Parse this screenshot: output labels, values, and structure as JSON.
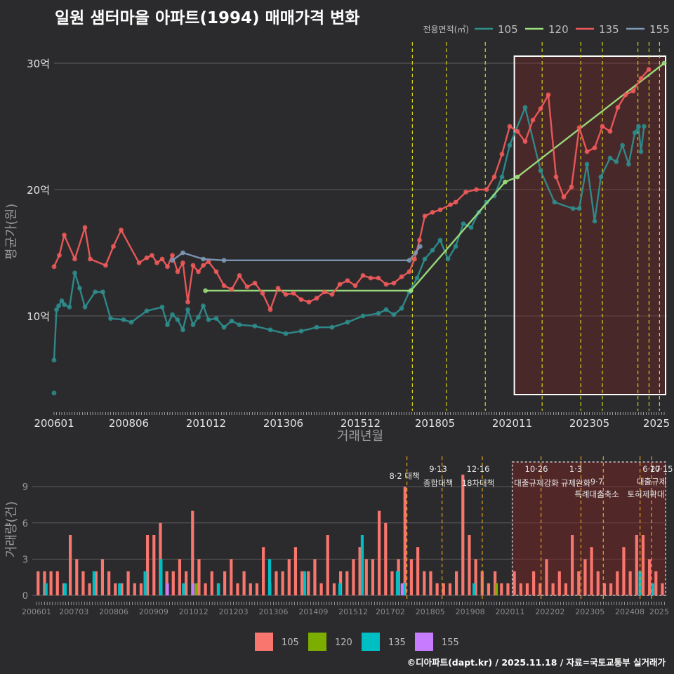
{
  "title": "일원 샘터마을 아파트(1994) 매매가격 변화",
  "credit": "©디아파트(dapt.kr) / 2025.11.18 / 자료=국토교통부 실거래가",
  "chart_data": [
    {
      "type": "line",
      "title": "일원 샘터마을 아파트(1994) 매매가격 변화",
      "xlabel": "거래년월",
      "ylabel": "평균가(원)",
      "legend_title": "전용면적(㎡)",
      "x_ticks": [
        "200601",
        "200806",
        "201012",
        "201306",
        "201512",
        "201805",
        "202011",
        "202305",
        "2025"
      ],
      "y_ticks": [
        {
          "v": 10,
          "label": "10억"
        },
        {
          "v": 20,
          "label": "20억"
        },
        {
          "v": 30,
          "label": "30억"
        }
      ],
      "ylim": [
        3,
        33
      ],
      "xlim": [
        2006.0,
        2025.75
      ],
      "highlight_window": [
        2020.9,
        2025.8
      ],
      "policy_lines": [
        2017.6,
        2018.7,
        2019.96,
        2021.8,
        2023.05,
        2023.75,
        2024.9,
        2025.26,
        2025.6
      ],
      "series": [
        {
          "name": "105",
          "color": "#2e8d8d",
          "x": [
            2006.0,
            2006.08,
            2006.15,
            2006.25,
            2006.33,
            2006.5,
            2006.67,
            2006.83,
            2007.0,
            2007.33,
            2007.58,
            2007.83,
            2008.25,
            2008.5,
            2009.0,
            2009.5,
            2009.67,
            2009.83,
            2010.0,
            2010.17,
            2010.33,
            2010.5,
            2010.67,
            2010.83,
            2011.0,
            2011.25,
            2011.5,
            2011.75,
            2012.0,
            2012.5,
            2013.0,
            2013.5,
            2014.0,
            2014.5,
            2015.0,
            2015.5,
            2016.0,
            2016.5,
            2016.75,
            2017.0,
            2017.25,
            2017.5,
            2017.75,
            2018.0,
            2018.25,
            2018.5,
            2018.75,
            2019.0,
            2019.25,
            2019.5,
            2019.75,
            2020.0,
            2020.25,
            2020.5,
            2020.75,
            2021.25,
            2021.75,
            2022.2,
            2022.8,
            2023.0,
            2023.25,
            2023.5,
            2023.7,
            2024.0,
            2024.2,
            2024.4,
            2024.6,
            2024.8,
            2024.92,
            2025.0,
            2025.1
          ],
          "y": [
            6.5,
            10.5,
            10.8,
            11.2,
            10.9,
            10.7,
            13.4,
            12.2,
            10.7,
            11.9,
            11.9,
            9.8,
            9.7,
            9.5,
            10.4,
            10.7,
            9.3,
            10.1,
            9.7,
            8.9,
            10.5,
            9.3,
            9.9,
            10.8,
            9.7,
            9.8,
            9.1,
            9.6,
            9.3,
            9.2,
            8.9,
            8.6,
            8.8,
            9.1,
            9.1,
            9.5,
            10.0,
            10.2,
            10.5,
            10.1,
            10.6,
            11.9,
            13.0,
            14.5,
            15.2,
            16.0,
            14.5,
            15.5,
            17.3,
            17.0,
            18.2,
            19.0,
            19.5,
            21.0,
            23.5,
            26.5,
            21.5,
            19.0,
            18.5,
            18.5,
            22.0,
            17.5,
            21.0,
            22.5,
            22.2,
            23.5,
            22.0,
            24.5,
            25.0,
            23.0,
            25.0
          ]
        },
        {
          "name": "120",
          "color": "#9ee07d",
          "x": [
            2010.9,
            2017.55,
            2020.6,
            2021.0,
            2025.75
          ],
          "y": [
            12.0,
            12.0,
            20.6,
            21.0,
            30.0
          ]
        },
        {
          "name": "135",
          "color": "#f05a5a",
          "x": [
            2006.0,
            2006.17,
            2006.33,
            2006.67,
            2007.0,
            2007.17,
            2007.67,
            2007.92,
            2008.17,
            2008.75,
            2009.0,
            2009.17,
            2009.33,
            2009.5,
            2009.67,
            2009.83,
            2010.0,
            2010.17,
            2010.33,
            2010.5,
            2010.67,
            2010.83,
            2011.0,
            2011.25,
            2011.5,
            2011.75,
            2012.0,
            2012.25,
            2012.5,
            2012.75,
            2013.0,
            2013.25,
            2013.5,
            2013.75,
            2014.0,
            2014.25,
            2014.5,
            2014.75,
            2015.0,
            2015.25,
            2015.5,
            2015.75,
            2016.0,
            2016.25,
            2016.5,
            2016.75,
            2017.0,
            2017.25,
            2017.5,
            2017.67,
            2017.83,
            2018.0,
            2018.25,
            2018.5,
            2018.83,
            2019.0,
            2019.33,
            2019.67,
            2020.0,
            2020.25,
            2020.5,
            2020.75,
            2021.0,
            2021.25,
            2021.5,
            2021.75,
            2022.0,
            2022.25,
            2022.5,
            2022.75,
            2023.0,
            2023.25,
            2023.5,
            2023.75,
            2024.0,
            2024.25,
            2024.5,
            2024.75,
            2025.0,
            2025.25
          ],
          "y": [
            13.9,
            14.8,
            16.4,
            14.5,
            17.0,
            14.5,
            14.0,
            15.5,
            16.8,
            14.2,
            14.6,
            14.8,
            14.2,
            14.5,
            13.9,
            14.8,
            13.5,
            14.2,
            11.1,
            14.0,
            13.5,
            14.0,
            14.3,
            13.5,
            12.4,
            12.1,
            13.2,
            12.3,
            12.6,
            11.8,
            10.5,
            12.2,
            11.7,
            11.8,
            11.3,
            11.1,
            11.4,
            11.9,
            11.7,
            12.5,
            12.8,
            12.4,
            13.2,
            13.0,
            13.0,
            12.5,
            12.6,
            13.1,
            13.5,
            14.5,
            16.0,
            17.9,
            18.2,
            18.4,
            18.8,
            19.0,
            19.8,
            20.0,
            20.0,
            21.0,
            22.8,
            25.0,
            24.6,
            23.8,
            25.5,
            26.4,
            27.5,
            21.0,
            19.4,
            20.2,
            24.9,
            23.0,
            23.3,
            25.0,
            24.6,
            26.5,
            27.5,
            27.8,
            28.8,
            29.5
          ]
        },
        {
          "name": "155",
          "color": "#7f99b8",
          "x": [
            2009.83,
            2010.17,
            2010.83,
            2011.5,
            2017.5,
            2017.7,
            2017.85
          ],
          "y": [
            14.4,
            15.0,
            14.5,
            14.4,
            14.4,
            15.0,
            15.5
          ]
        }
      ]
    },
    {
      "type": "bar",
      "ylabel": "거래량(건)",
      "y_ticks": [
        0,
        3,
        6,
        9
      ],
      "ylim": [
        0,
        10.5
      ],
      "x_ticks": [
        "200601",
        "200703",
        "200806",
        "200909",
        "201012",
        "201203",
        "201306",
        "201409",
        "201512",
        "201702",
        "201805",
        "201908",
        "202011",
        "202202",
        "202305",
        "202408",
        "2025"
      ],
      "legend": [
        {
          "name": "105",
          "color": "#f8766d"
        },
        {
          "name": "120",
          "color": "#7cae00"
        },
        {
          "name": "135",
          "color": "#00bfc4"
        },
        {
          "name": "155",
          "color": "#c77cff"
        }
      ],
      "policy_events": [
        {
          "x": 2017.6,
          "label": "8·2 대책"
        },
        {
          "x": 2018.7,
          "label": "9·13 종합대책"
        },
        {
          "x": 2019.96,
          "label": "12·16 18차대책"
        },
        {
          "x": 2021.8,
          "label": "10·26 대출규제강화"
        },
        {
          "x": 2023.05,
          "label": "1·3 규제완화"
        },
        {
          "x": 2023.75,
          "label": "9·7 특례대출축소"
        },
        {
          "x": 2024.9,
          "label": "6·27 대출규제"
        },
        {
          "x": 2025.26,
          "label": "10·15 토허제확대"
        }
      ],
      "series": [
        {
          "name": "105",
          "color": "#f8766d",
          "values": [
            2,
            2,
            2,
            2,
            1,
            5,
            3,
            2,
            1,
            2,
            3,
            2,
            1,
            1,
            2,
            1,
            1,
            5,
            5,
            6,
            2,
            2,
            3,
            2,
            7,
            3,
            1,
            2,
            1,
            2,
            3,
            1,
            2,
            1,
            1,
            4,
            1,
            2,
            2,
            3,
            4,
            2,
            2,
            3,
            1,
            5,
            1,
            2,
            2,
            3,
            4,
            3,
            3,
            7,
            6,
            2,
            3,
            9,
            3,
            4,
            2,
            2,
            1,
            1,
            1,
            2,
            10,
            5,
            3,
            2,
            1,
            2,
            1,
            1,
            2,
            1,
            1,
            2,
            1,
            3,
            1,
            2,
            1,
            5,
            2,
            3,
            4,
            2,
            1,
            1,
            2,
            4,
            2,
            5,
            5,
            3,
            2,
            1
          ]
        },
        {
          "name": "120",
          "color": "#7cae00",
          "values": [
            1,
            1
          ]
        },
        {
          "name": "135",
          "color": "#00bfc4",
          "values": [
            1,
            1,
            2,
            1,
            2,
            3,
            1,
            1,
            3,
            2,
            1,
            5,
            2,
            1,
            1,
            2,
            1
          ]
        },
        {
          "name": "155",
          "color": "#c77cff",
          "values": [
            1,
            1,
            1
          ]
        }
      ]
    }
  ]
}
